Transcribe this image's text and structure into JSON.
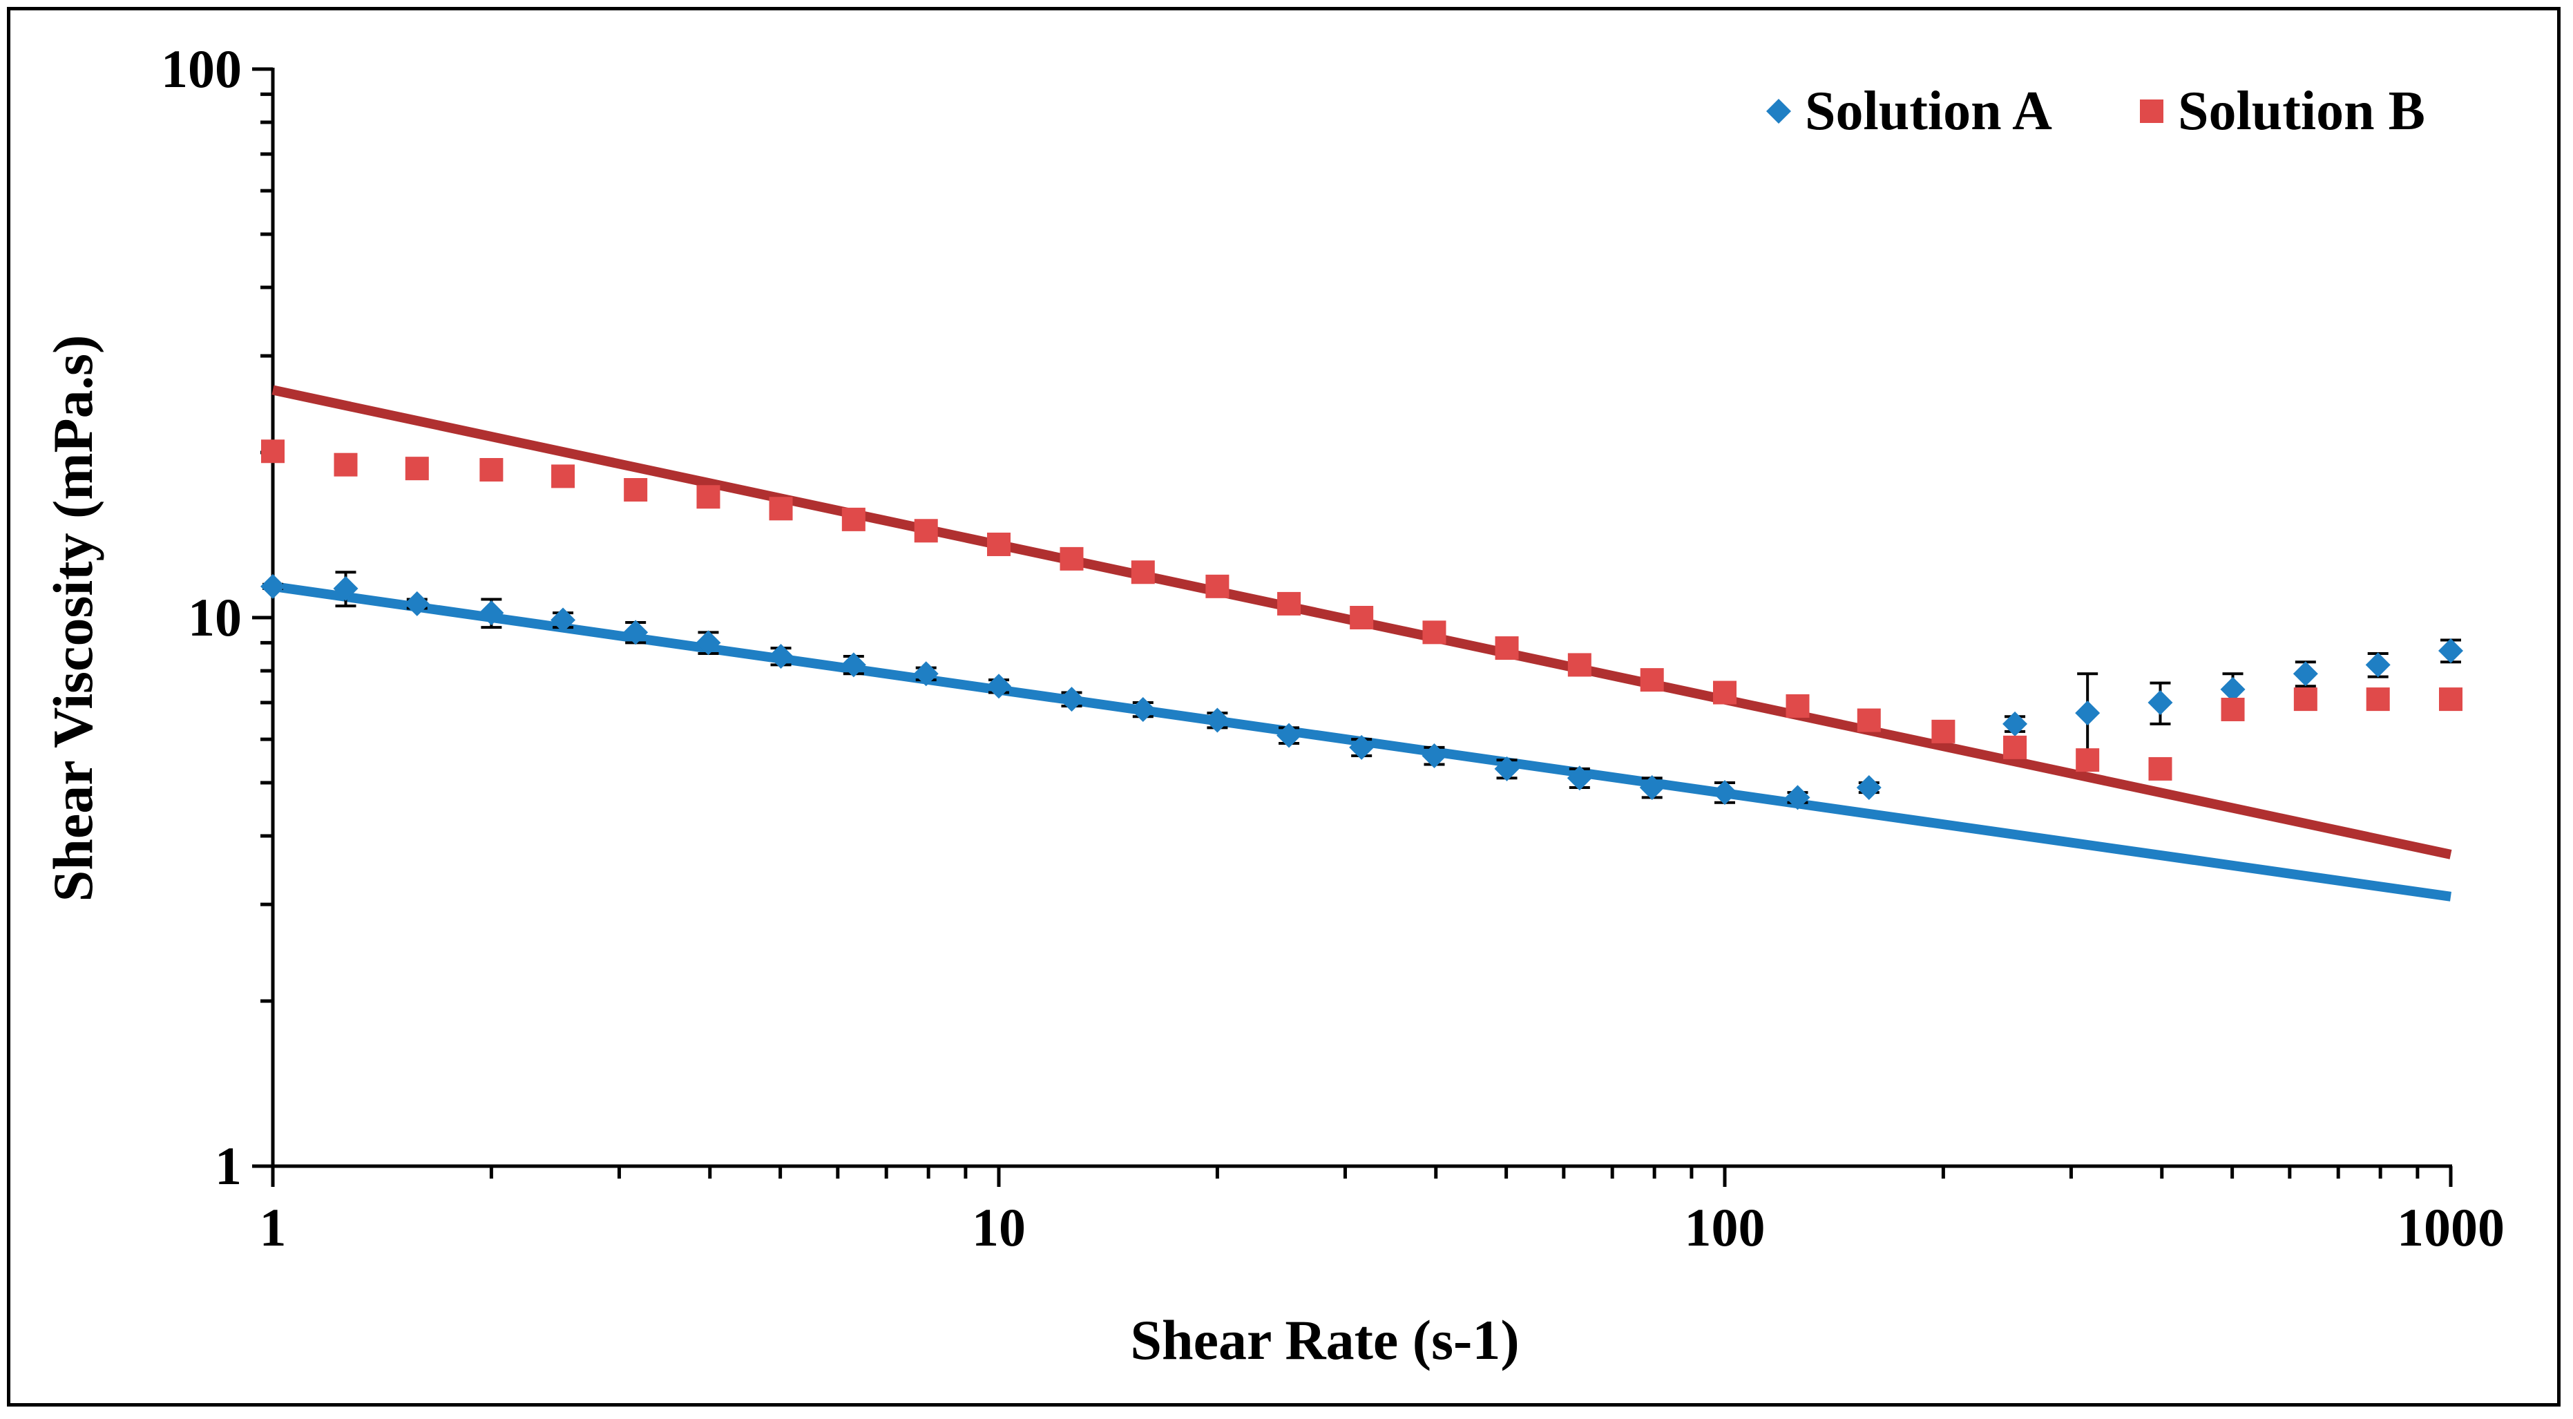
{
  "chart_data": {
    "type": "scatter",
    "xlabel": "Shear Rate (s-1)",
    "ylabel": "Shear Viscosity (mPa.s)",
    "x_scale": "log",
    "y_scale": "log",
    "xlim": [
      1,
      1000
    ],
    "ylim": [
      1,
      100
    ],
    "x_ticks": [
      1,
      10,
      100,
      1000
    ],
    "x_tick_labels": [
      "1",
      "10",
      "100",
      "1000"
    ],
    "y_ticks": [
      1,
      10,
      100
    ],
    "y_tick_labels": [
      "1",
      "10",
      "100"
    ],
    "grid": false,
    "legend_position": "top-right",
    "series": [
      {
        "name": "Solution A",
        "marker": "diamond",
        "color": "#1f7fc4",
        "x": [
          1,
          1.26,
          1.58,
          2,
          2.51,
          3.16,
          3.98,
          5.01,
          6.31,
          7.94,
          10,
          12.6,
          15.8,
          20,
          25.1,
          31.6,
          39.8,
          50.1,
          63.1,
          79.4,
          100,
          126,
          158,
          251,
          316,
          398,
          501,
          631,
          794,
          1000
        ],
        "y": [
          11.4,
          11.3,
          10.6,
          10.2,
          9.9,
          9.4,
          9.0,
          8.5,
          8.2,
          7.9,
          7.5,
          7.1,
          6.8,
          6.5,
          6.1,
          5.8,
          5.6,
          5.3,
          5.1,
          4.9,
          4.8,
          4.7,
          4.9,
          6.4,
          6.7,
          7.0,
          7.4,
          7.9,
          8.2,
          8.7
        ],
        "err": [
          0.1,
          0.8,
          0.2,
          0.6,
          0.3,
          0.4,
          0.4,
          0.3,
          0.3,
          0.2,
          0.2,
          0.2,
          0.2,
          0.2,
          0.2,
          0.2,
          0.2,
          0.2,
          0.2,
          0.2,
          0.2,
          0.1,
          0.1,
          0.2,
          1.2,
          0.6,
          0.5,
          0.4,
          0.4,
          0.4
        ]
      },
      {
        "name": "Solution B",
        "marker": "square",
        "color": "#e04a4a",
        "x": [
          1,
          1.26,
          1.58,
          2,
          2.51,
          3.16,
          3.98,
          5.01,
          6.31,
          7.94,
          10,
          12.6,
          15.8,
          20,
          25.1,
          31.6,
          39.8,
          50.1,
          63.1,
          79.4,
          100,
          126,
          158,
          200,
          251,
          316,
          398,
          501,
          631,
          794,
          1000
        ],
        "y": [
          20.1,
          19.0,
          18.7,
          18.6,
          18.1,
          17.1,
          16.6,
          15.8,
          15.1,
          14.4,
          13.6,
          12.8,
          12.1,
          11.4,
          10.6,
          10.0,
          9.4,
          8.8,
          8.2,
          7.7,
          7.3,
          6.9,
          6.5,
          6.2,
          5.8,
          5.5,
          5.3,
          6.8,
          7.1,
          7.1,
          7.1
        ]
      }
    ],
    "fit_lines": [
      {
        "color": "#1f7fc4",
        "x": [
          1,
          1000
        ],
        "y": [
          11.4,
          3.1
        ]
      },
      {
        "color": "#b03030",
        "x": [
          1,
          1000
        ],
        "y": [
          26.0,
          3.7
        ]
      }
    ]
  }
}
